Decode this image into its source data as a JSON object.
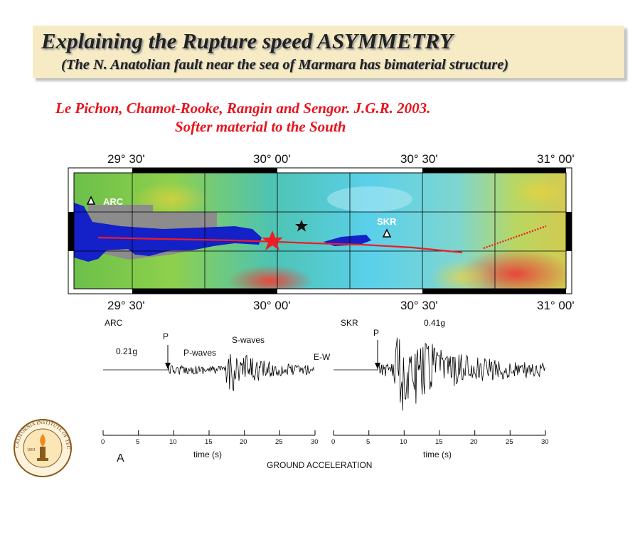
{
  "slide": {
    "title": "Explaining the Rupture speed ASYMMETRY",
    "subtitle": "(The N. Anatolian fault near the sea of Marmara has bimaterial  structure)",
    "reference_line1": "Le Pichon, Chamot-Rooke, Rangin and Sengor. J.G.R. 2003.",
    "reference_line2": "Softer material to the South"
  },
  "map": {
    "lon_labels_top": [
      "29° 30'",
      "30° 00'",
      "30° 30'",
      "31° 00'"
    ],
    "lon_labels_bottom": [
      "29° 30'",
      "30° 00'",
      "30° 30'",
      "31° 00'"
    ],
    "stations": [
      "ARC",
      "SKR"
    ]
  },
  "seismograms": {
    "arc": {
      "station": "ARC",
      "peak": "0.21g",
      "p_marker": "P",
      "p_label": "P-waves",
      "s_label": "S-waves",
      "component": "E-W"
    },
    "skr": {
      "station": "SKR",
      "peak": "0.41g",
      "p_marker": "P"
    },
    "axis_ticks": [
      "0",
      "5",
      "10",
      "15",
      "20",
      "25",
      "30"
    ],
    "xlabel": "time (s)",
    "panel_label": "A",
    "caption": "GROUND ACCELERATION"
  },
  "logo": {
    "text": "CALIFORNIA INSTITUTE OF TECHNOLOGY",
    "year": "1891"
  }
}
